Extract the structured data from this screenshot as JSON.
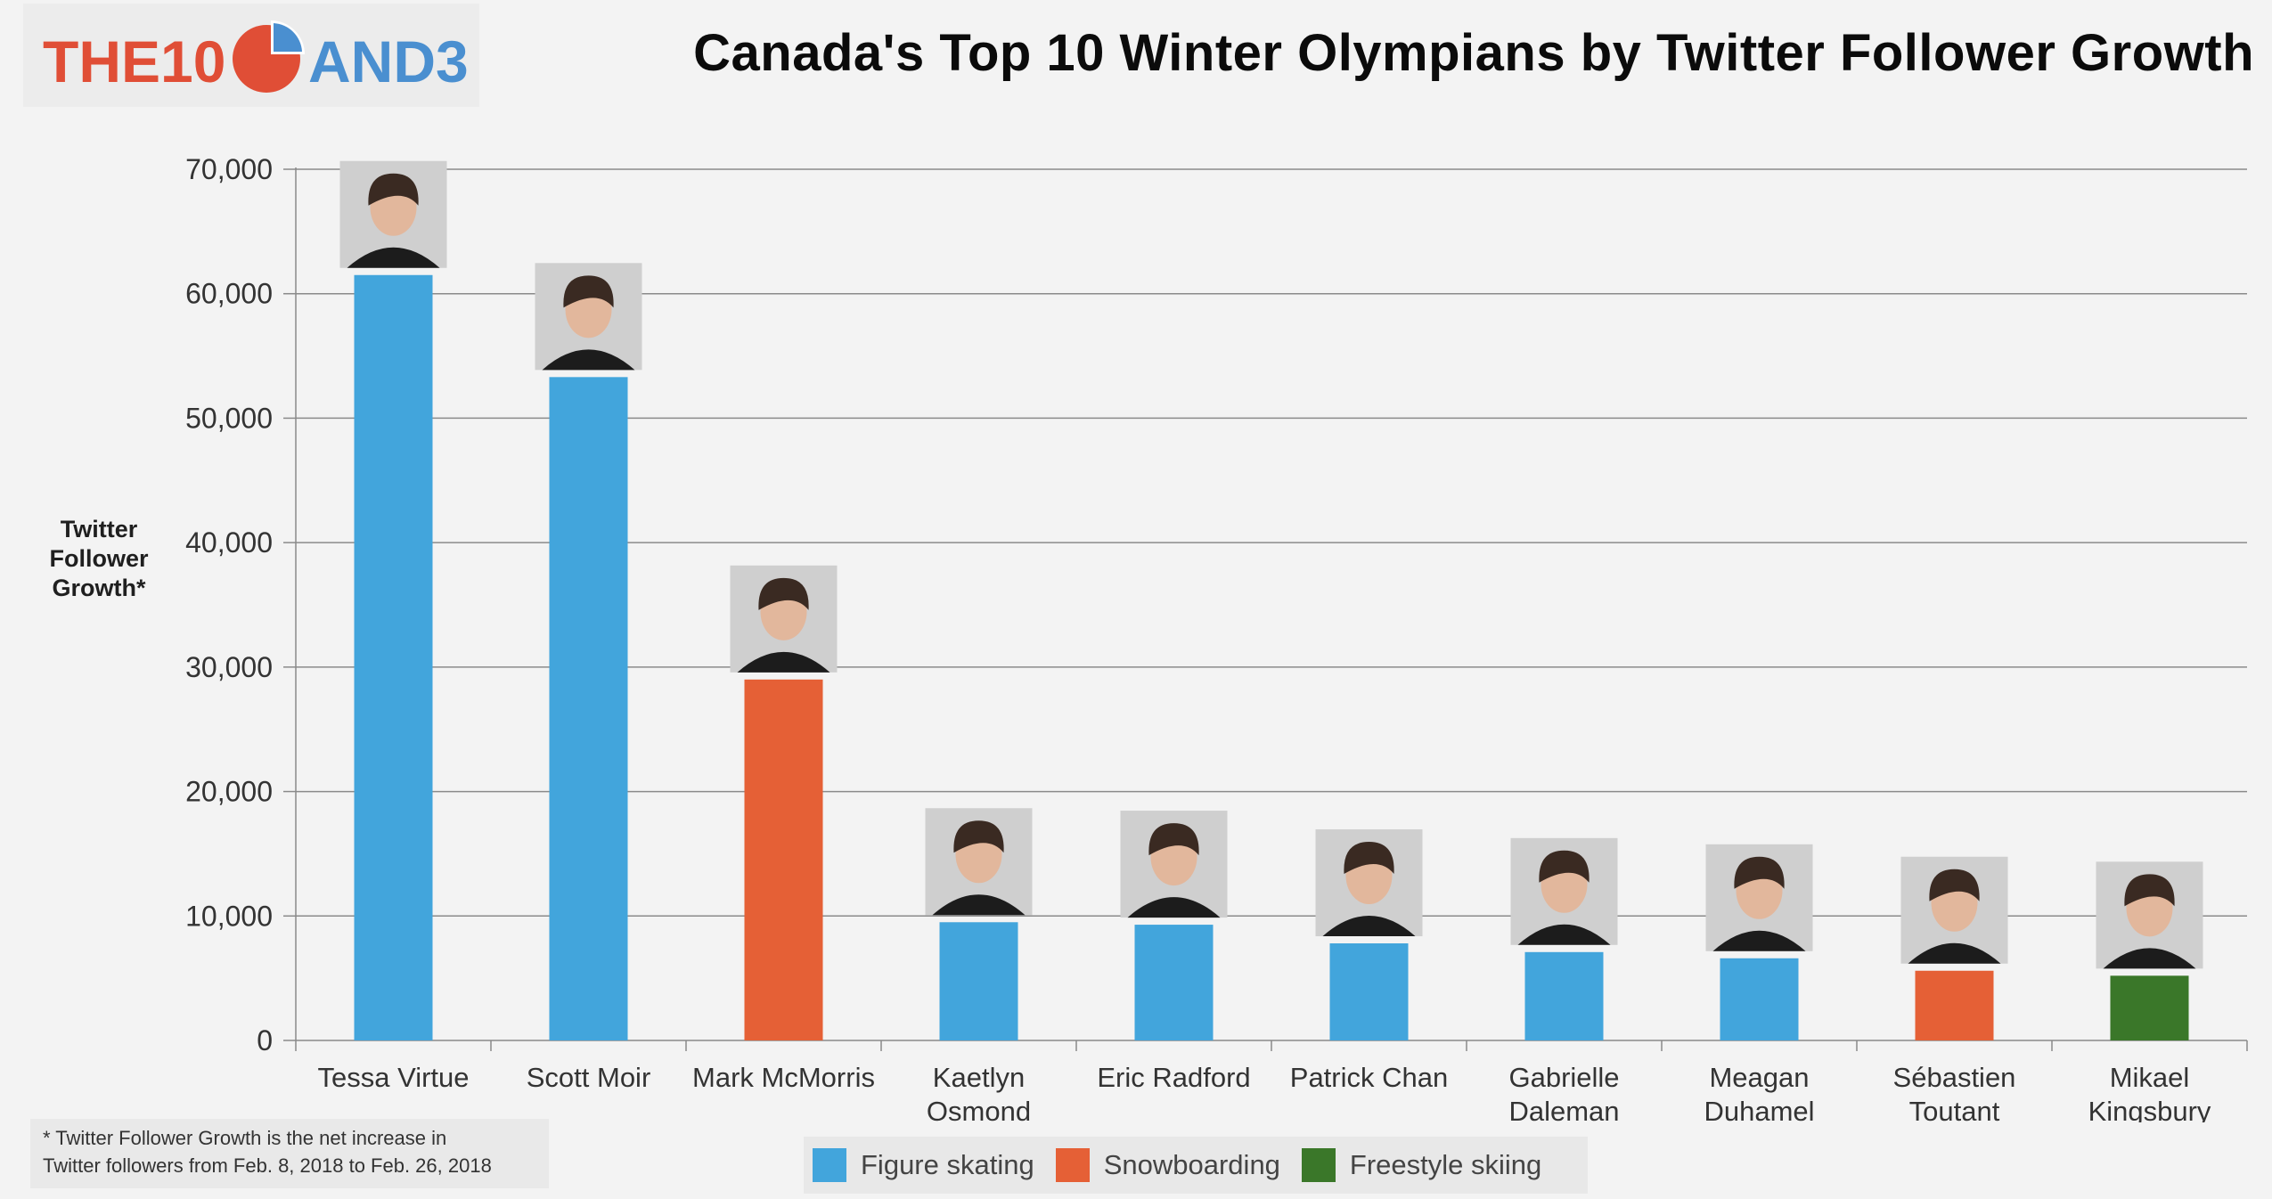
{
  "logo": {
    "text_left": "THE10",
    "text_right": "AND3"
  },
  "title": "Canada's Top 10 Winter Olympians by Twitter Follower Growth",
  "footnote": {
    "line1": "* Twitter Follower Growth is the net increase in",
    "line2": "Twitter followers from Feb. 8, 2018 to Feb. 26, 2018"
  },
  "colors": {
    "figure_skating": "#42a5dc",
    "snowboarding": "#e56036",
    "freestyle_skiing": "#3a7729",
    "logo_red": "#e04e36",
    "logo_blue": "#4a8fd0"
  },
  "legend": [
    {
      "label": "Figure skating",
      "color": "#42a5dc"
    },
    {
      "label": "Snowboarding",
      "color": "#e56036"
    },
    {
      "label": "Freestyle skiing",
      "color": "#3a7729"
    }
  ],
  "chart_data": {
    "type": "bar",
    "title": "Canada's Top 10 Winter Olympians by Twitter Follower Growth",
    "xlabel": "",
    "ylabel": "Twitter Follower Growth*",
    "ylim": [
      0,
      70000
    ],
    "yticks": [
      0,
      10000,
      20000,
      30000,
      40000,
      50000,
      60000,
      70000
    ],
    "ytick_labels": [
      "0",
      "10,000",
      "20,000",
      "30,000",
      "40,000",
      "50,000",
      "60,000",
      "70,000"
    ],
    "grid": true,
    "legend_position": "bottom",
    "categories": [
      [
        "Tessa Virtue"
      ],
      [
        "Scott Moir"
      ],
      [
        "Mark McMorris"
      ],
      [
        "Kaetlyn",
        "Osmond"
      ],
      [
        "Eric Radford"
      ],
      [
        "Patrick Chan"
      ],
      [
        "Gabrielle",
        "Daleman"
      ],
      [
        "Meagan",
        "Duhamel"
      ],
      [
        "Sébastien",
        "Toutant"
      ],
      [
        "Mikael",
        "Kingsbury"
      ]
    ],
    "values": [
      61500,
      53300,
      29000,
      9500,
      9300,
      7800,
      7100,
      6600,
      5600,
      5200
    ],
    "sports": [
      "Figure skating",
      "Figure skating",
      "Snowboarding",
      "Figure skating",
      "Figure skating",
      "Figure skating",
      "Figure skating",
      "Figure skating",
      "Snowboarding",
      "Freestyle skiing"
    ]
  }
}
